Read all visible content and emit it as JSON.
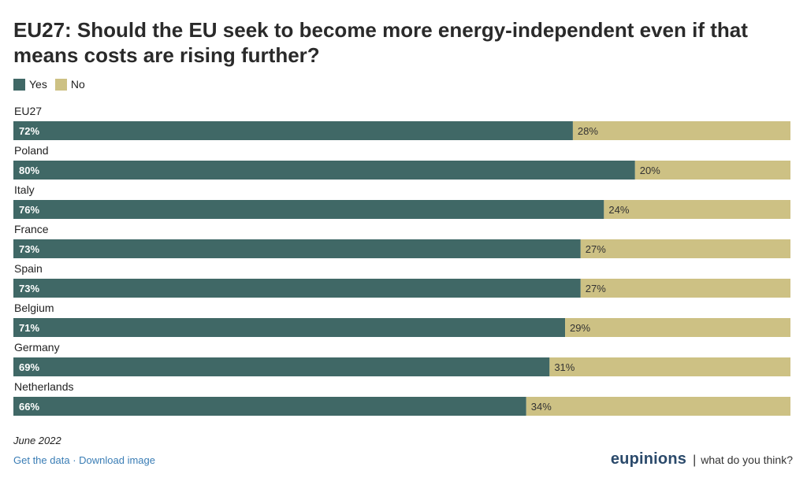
{
  "title": "EU27: Should the EU seek to become more energy-independent even if that means costs are rising further?",
  "legend": {
    "yes_label": "Yes",
    "no_label": "No"
  },
  "colors": {
    "yes": "#406866",
    "no": "#cdc184"
  },
  "chart_data": {
    "type": "bar",
    "orientation": "horizontal-stacked",
    "categories": [
      "EU27",
      "Poland",
      "Italy",
      "France",
      "Spain",
      "Belgium",
      "Germany",
      "Netherlands"
    ],
    "series": [
      {
        "name": "Yes",
        "values": [
          72,
          80,
          76,
          73,
          73,
          71,
          69,
          66
        ]
      },
      {
        "name": "No",
        "values": [
          28,
          20,
          24,
          27,
          27,
          29,
          31,
          34
        ]
      }
    ],
    "value_suffix": "%",
    "xlim": [
      0,
      100
    ],
    "legend_position": "top-left",
    "grid": false
  },
  "footer": {
    "date": "June 2022",
    "get_data": "Get the data",
    "separator": "·",
    "download_image": "Download image"
  },
  "brand": {
    "name": "eupinions",
    "separator": "|",
    "tagline": "what do you think?"
  }
}
